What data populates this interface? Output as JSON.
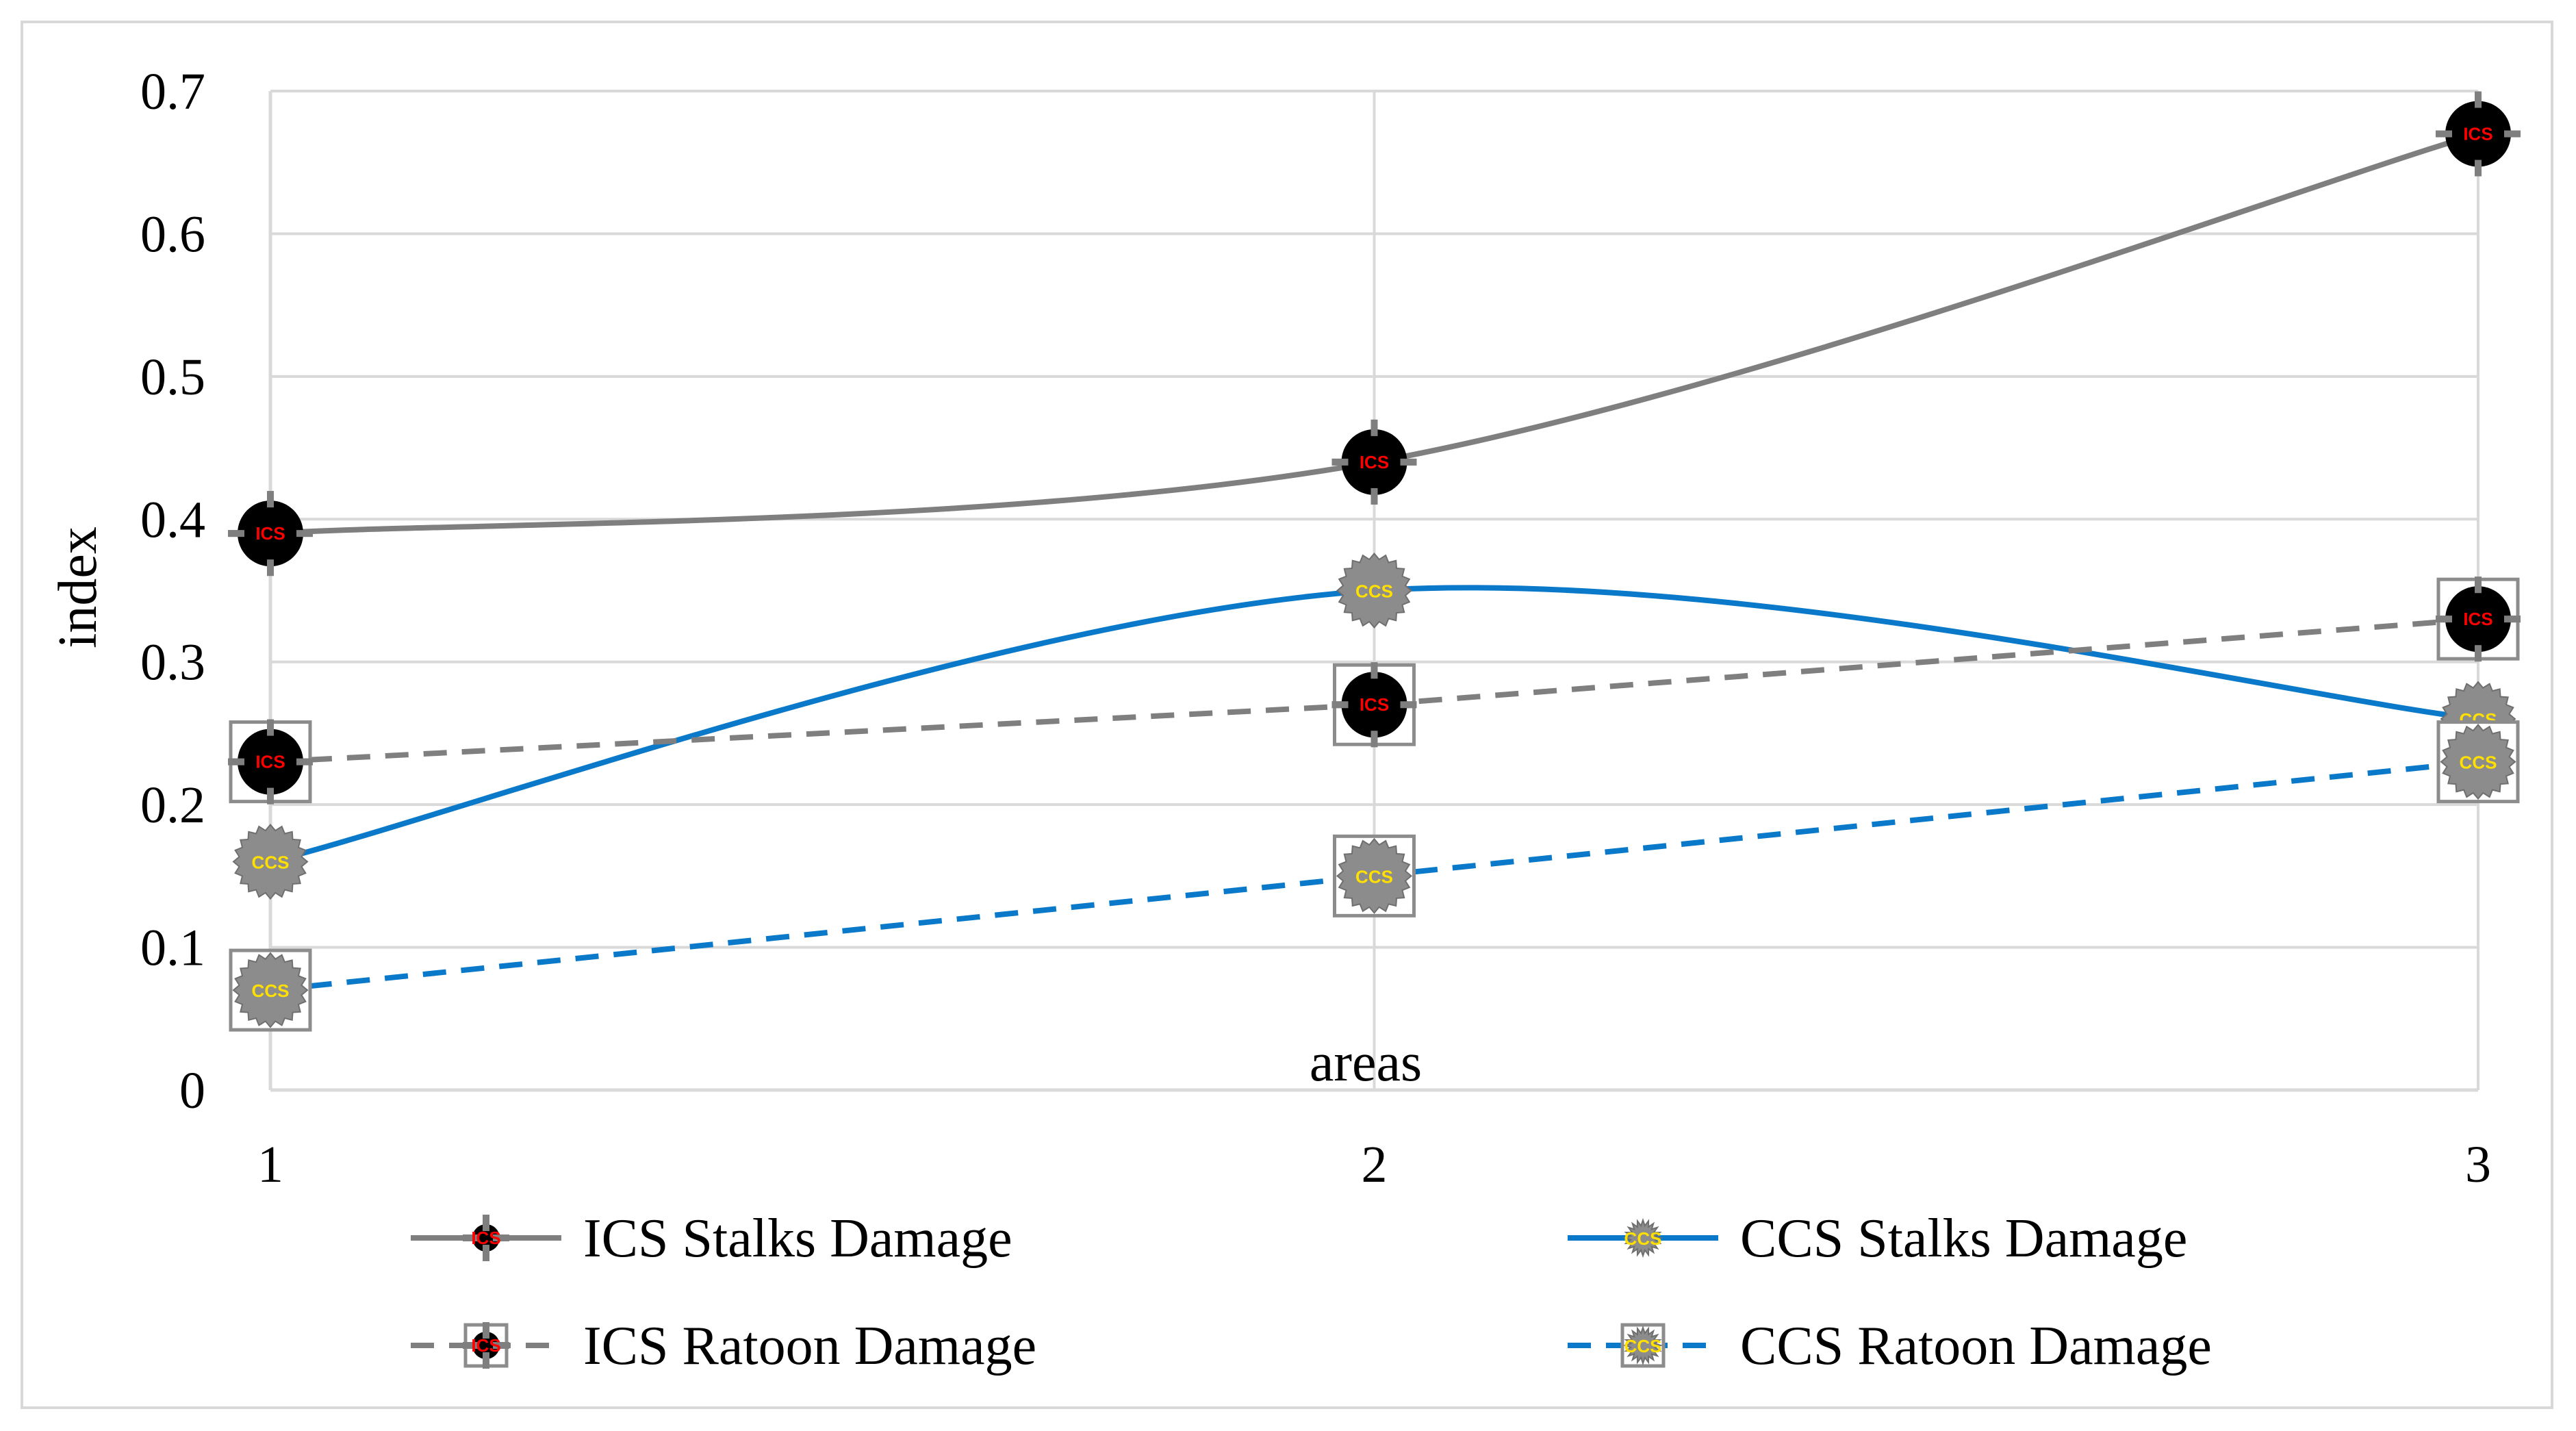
{
  "chart_data": {
    "type": "line",
    "title": "",
    "xlabel": "areas",
    "ylabel": "index",
    "categories": [
      "1",
      "2",
      "3"
    ],
    "ylim": [
      0,
      0.7
    ],
    "yticks": [
      "0",
      "0.1",
      "0.2",
      "0.3",
      "0.4",
      "0.5",
      "0.6",
      "0.7"
    ],
    "grid": true,
    "legend_position": "bottom",
    "series": [
      {
        "name": "ICS Stalks Damage",
        "values": [
          0.39,
          0.44,
          0.67
        ],
        "color": "#7f7f7f",
        "dash": "solid",
        "smooth": true,
        "marker": "ics",
        "marker_text": "ICS",
        "box": false
      },
      {
        "name": "CCS Stalks Damage",
        "values": [
          0.16,
          0.35,
          0.26
        ],
        "color": "#0a79c9",
        "dash": "solid",
        "smooth": true,
        "marker": "ccs",
        "marker_text": "CCS",
        "box": false
      },
      {
        "name": "ICS Ratoon Damage",
        "values": [
          0.23,
          0.27,
          0.33
        ],
        "color": "#7f7f7f",
        "dash": "dashed",
        "smooth": false,
        "marker": "ics",
        "marker_text": "ICS",
        "box": true
      },
      {
        "name": "CCS Ratoon Damage",
        "values": [
          0.07,
          0.15,
          0.23
        ],
        "color": "#0a79c9",
        "dash": "dashed",
        "smooth": false,
        "marker": "ccs",
        "marker_text": "CCS",
        "box": true
      }
    ]
  },
  "colors": {
    "grid": "#d9d9d9",
    "axis": "#d9d9d9",
    "ics_fill": "#000000",
    "ics_text": "#ff0000",
    "ccs_fill": "#8c8c8c",
    "ccs_text": "#ffe000"
  }
}
